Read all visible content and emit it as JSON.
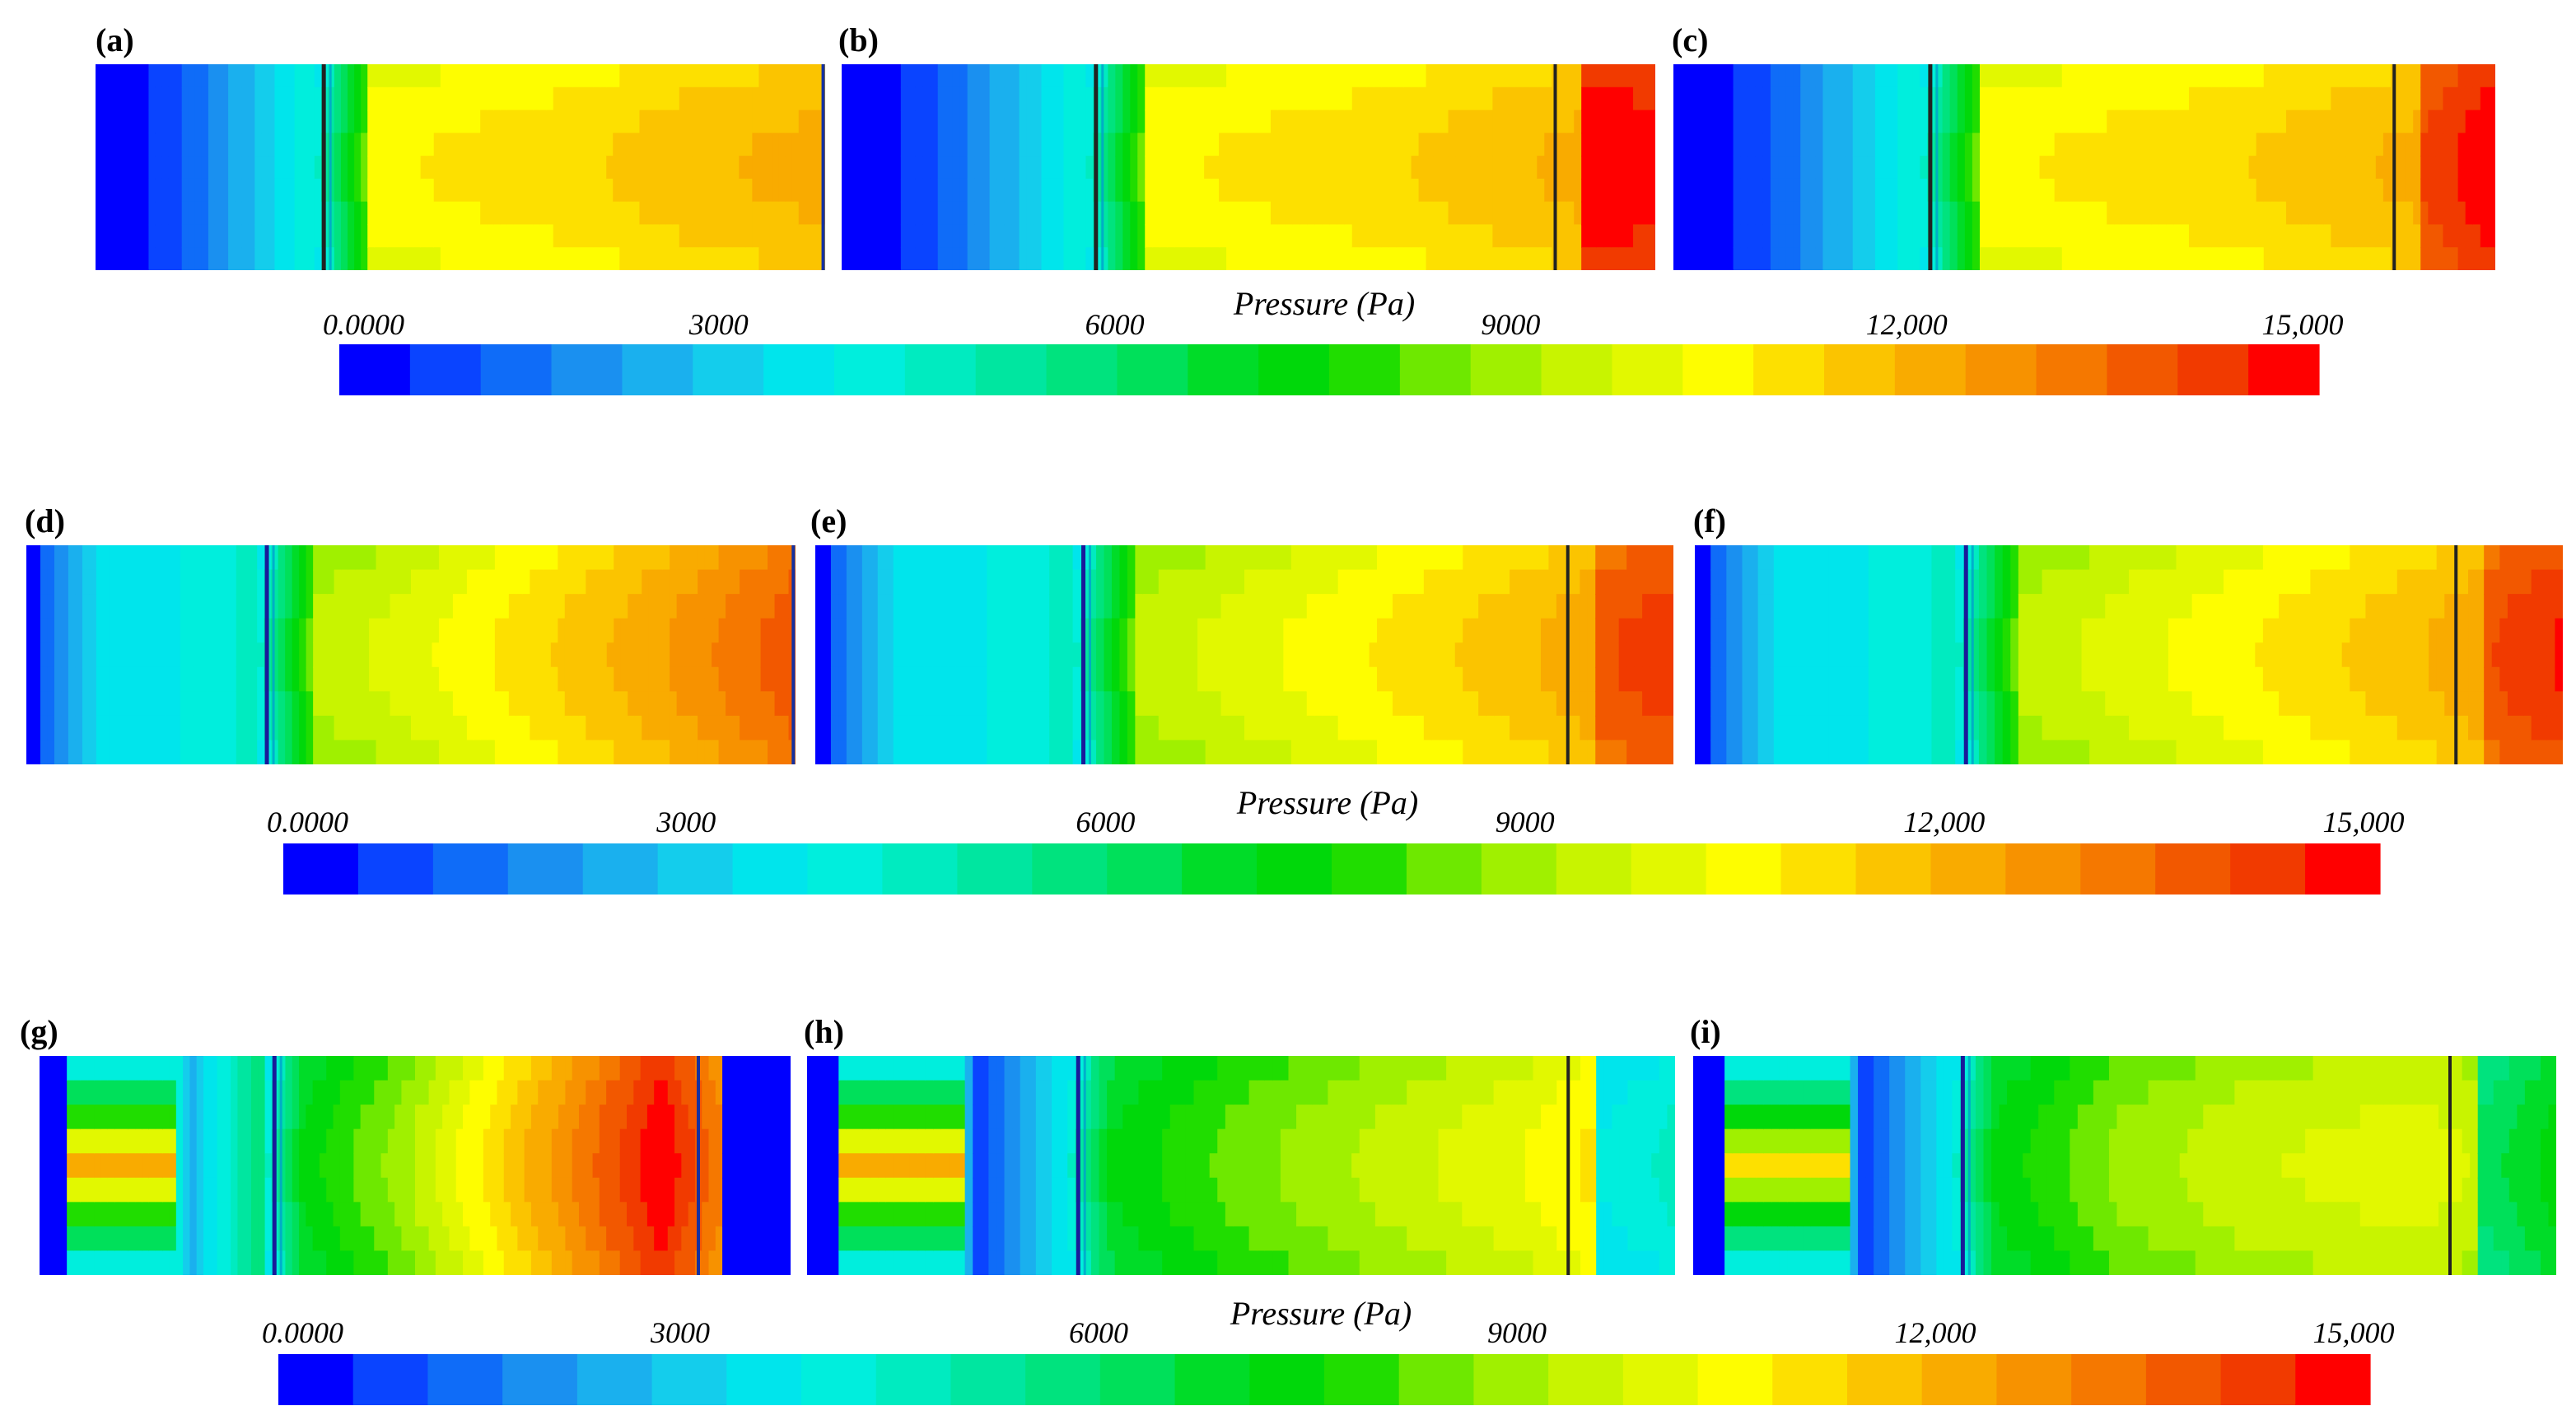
{
  "figure": {
    "colormap": [
      "#0000ff",
      "#0a44ff",
      "#0f6cf8",
      "#1a90f0",
      "#1ab0ee",
      "#14cdec",
      "#00e5ec",
      "#00eedd",
      "#00ebc0",
      "#00e6a0",
      "#00e37e",
      "#00e05a",
      "#00dc28",
      "#00d80a",
      "#20dd00",
      "#6ee800",
      "#a0f000",
      "#c8f400",
      "#e2f800",
      "#fefd00",
      "#fde000",
      "#fbc400",
      "#f9ab00",
      "#f79200",
      "#f57800",
      "#f25800",
      "#f13a00",
      "#ff0000"
    ],
    "panels": [
      {
        "label": "(a)",
        "group": 0,
        "inlet": [
          0.0,
          0.05,
          0.16,
          0.28
        ],
        "inlet_mid": 0.11,
        "dividers": [
          "#222222",
          "#1530a0"
        ],
        "outlet": [
          0.7,
          0.72,
          0.74,
          0.78,
          0.8
        ],
        "outlet2": null,
        "outlet_mid": 0.74
      },
      {
        "label": "(b)",
        "group": 0,
        "inlet": [
          0.0,
          0.05,
          0.16,
          0.28
        ],
        "inlet_mid": 0.11,
        "dividers": [
          "#222222",
          "#222222"
        ],
        "outlet": [
          0.7,
          0.72,
          0.74,
          0.78,
          0.82
        ],
        "outlet2": [
          1.0,
          0.98
        ],
        "outlet_mid": 0.74
      },
      {
        "label": "(c)",
        "group": 0,
        "inlet": [
          0.0,
          0.05,
          0.16,
          0.28
        ],
        "inlet_mid": 0.11,
        "dividers": [
          "#222222",
          "#222222"
        ],
        "outlet": [
          0.7,
          0.72,
          0.74,
          0.78,
          0.82
        ],
        "outlet2": [
          0.93,
          1.0
        ],
        "outlet_mid": 0.74
      },
      {
        "label": "(d)",
        "group": 1,
        "inlet": [
          0.04,
          0.23,
          0.25,
          0.3
        ],
        "inlet_mid": 0.23,
        "dividers": [
          "#1a1a9a",
          "#1530a0"
        ],
        "outlet": [
          0.6,
          0.66,
          0.74,
          0.82,
          0.92
        ],
        "outlet2": null,
        "outlet_mid": 0.7
      },
      {
        "label": "(e)",
        "group": 1,
        "inlet": [
          0.04,
          0.23,
          0.25,
          0.3
        ],
        "inlet_mid": 0.23,
        "dividers": [
          "#1a1a9a",
          "#222222"
        ],
        "outlet": [
          0.6,
          0.66,
          0.72,
          0.78,
          0.86
        ],
        "outlet2": [
          0.92,
          0.95
        ],
        "outlet_mid": 0.68
      },
      {
        "label": "(f)",
        "group": 1,
        "inlet": [
          0.04,
          0.23,
          0.25,
          0.3
        ],
        "inlet_mid": 0.23,
        "dividers": [
          "#1a1a9a",
          "#222222"
        ],
        "outlet": [
          0.6,
          0.66,
          0.72,
          0.78,
          0.86
        ],
        "outlet2": [
          0.92,
          0.97
        ],
        "outlet_mid": 0.68
      },
      {
        "label": "(g)",
        "group": 2,
        "inlet": [
          0.0,
          1.0,
          0.16,
          0.4
        ],
        "inlet_mid": 0.8,
        "dividers": [
          "#1a1a9a",
          "#1530a0"
        ],
        "outlet": [
          0.45,
          0.6,
          0.8,
          1.0,
          0.7
        ],
        "outlet2": [
          0.0,
          0.0
        ],
        "outlet_mid": 0.55
      },
      {
        "label": "(h)",
        "group": 2,
        "inlet": [
          0.0,
          1.0,
          0.04,
          0.25
        ],
        "inlet_mid": 0.8,
        "dividers": [
          "#1a1a9a",
          "#222222"
        ],
        "outlet": [
          0.45,
          0.55,
          0.62,
          0.68,
          0.78
        ],
        "outlet2": [
          0.25,
          0.3
        ],
        "outlet_mid": 0.55
      },
      {
        "label": "(i)",
        "group": 2,
        "inlet": [
          0.0,
          0.92,
          0.04,
          0.25
        ],
        "inlet_mid": 0.72,
        "dividers": [
          "#1a1a9a",
          "#222222"
        ],
        "outlet": [
          0.45,
          0.58,
          0.64,
          0.66,
          0.62
        ],
        "outlet2": [
          0.4,
          0.48
        ],
        "outlet_mid": 0.52
      }
    ],
    "colorbars": [
      {
        "title": "Pressure (Pa)",
        "ticks": [
          "0.0000",
          "3000",
          "6000",
          "9000",
          "12,000",
          "15,000"
        ]
      },
      {
        "title": "Pressure (Pa)",
        "ticks": [
          "0.0000",
          "3000",
          "6000",
          "9000",
          "12,000",
          "15,000"
        ]
      },
      {
        "title": "Pressure (Pa)",
        "ticks": [
          "0.0000",
          "3000",
          "6000",
          "9000",
          "12,000",
          "15,000"
        ]
      }
    ]
  }
}
